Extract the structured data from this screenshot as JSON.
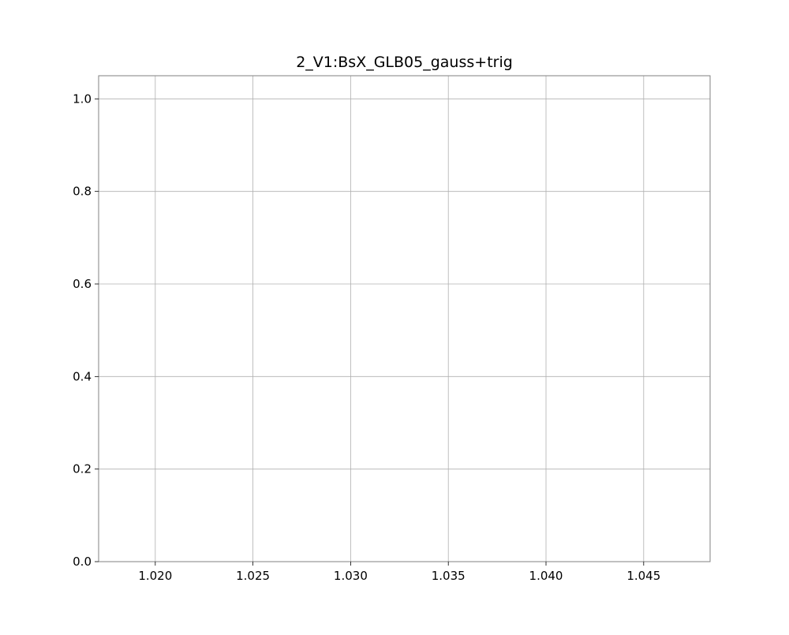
{
  "chart_data": {
    "type": "line",
    "title": "2_V1:BsX_GLB05_gauss+trig",
    "xlabel": "",
    "ylabel": "",
    "xlim": [
      1.0171,
      1.0484
    ],
    "ylim": [
      0.0,
      1.05
    ],
    "x_ticks": [
      1.02,
      1.025,
      1.03,
      1.035,
      1.04,
      1.045
    ],
    "x_tick_labels": [
      "1.020",
      "1.025",
      "1.030",
      "1.035",
      "1.040",
      "1.045"
    ],
    "y_ticks": [
      0.0,
      0.2,
      0.4,
      0.6,
      0.8,
      1.0
    ],
    "y_tick_labels": [
      "0.0",
      "0.2",
      "0.4",
      "0.6",
      "0.8",
      "1.0"
    ],
    "grid": true,
    "series": []
  },
  "colors": {
    "grid": "#b0b0b0",
    "axes": "#808080",
    "text": "#000000",
    "background": "#ffffff"
  }
}
